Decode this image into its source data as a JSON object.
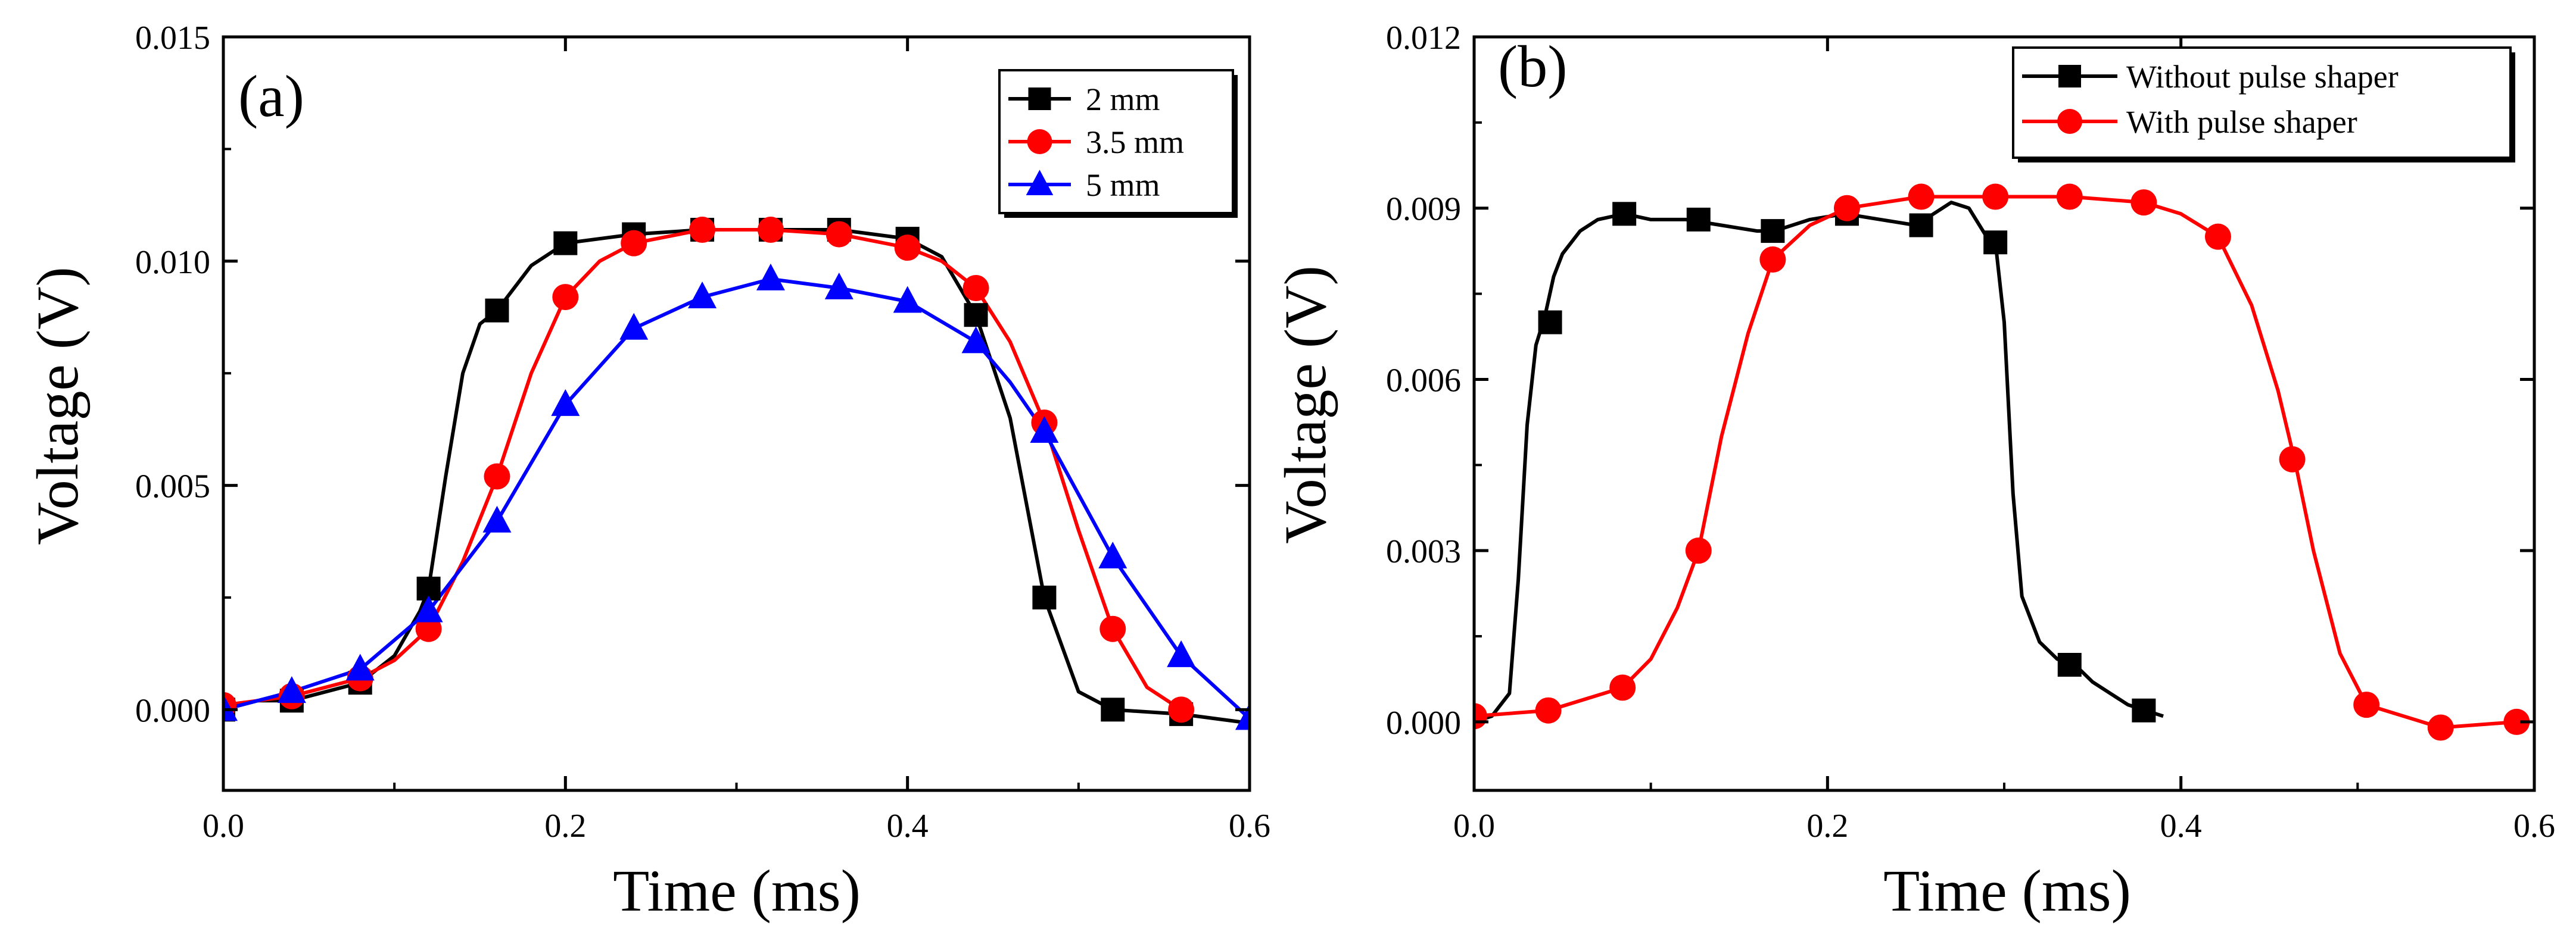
{
  "chart_data": [
    {
      "type": "line",
      "panel_label": "(a)",
      "xlabel": "Time (ms)",
      "ylabel": "Voltage (V)",
      "xlim": [
        0.0,
        0.6
      ],
      "ylim": [
        -0.0018,
        0.015
      ],
      "xticks": [
        "0.0",
        "0.2",
        "0.4",
        "0.6"
      ],
      "yticks": [
        "0.000",
        "0.005",
        "0.010",
        "0.015"
      ],
      "legend_position": "top-right",
      "series": [
        {
          "name": "2 mm",
          "color": "#000000",
          "marker": "square",
          "x": [
            0.0,
            0.02,
            0.04,
            0.06,
            0.08,
            0.1,
            0.115,
            0.12,
            0.13,
            0.14,
            0.15,
            0.16,
            0.18,
            0.2,
            0.24,
            0.28,
            0.32,
            0.36,
            0.4,
            0.42,
            0.44,
            0.46,
            0.48,
            0.5,
            0.52,
            0.56,
            0.6
          ],
          "y": [
            0.0,
            0.0002,
            0.0002,
            0.0004,
            0.0006,
            0.0012,
            0.0022,
            0.0027,
            0.0052,
            0.0075,
            0.0086,
            0.0089,
            0.0099,
            0.0104,
            0.0106,
            0.0107,
            0.0107,
            0.0107,
            0.0105,
            0.0101,
            0.0088,
            0.0065,
            0.0025,
            0.0004,
            0.0,
            -0.0001,
            -0.0003
          ],
          "marker_x": [
            0.0,
            0.04,
            0.08,
            0.12,
            0.16,
            0.2,
            0.24,
            0.28,
            0.32,
            0.36,
            0.4,
            0.44,
            0.48,
            0.52,
            0.56
          ],
          "marker_y": [
            0.0,
            0.0002,
            0.0006,
            0.0027,
            0.0089,
            0.0104,
            0.0106,
            0.0107,
            0.0107,
            0.0107,
            0.0105,
            0.0088,
            0.0025,
            0.0,
            -0.0001
          ]
        },
        {
          "name": "3.5 mm",
          "color": "#ff0000",
          "marker": "circle",
          "x": [
            0.0,
            0.04,
            0.08,
            0.1,
            0.12,
            0.14,
            0.16,
            0.18,
            0.2,
            0.22,
            0.24,
            0.28,
            0.32,
            0.36,
            0.4,
            0.42,
            0.44,
            0.46,
            0.48,
            0.5,
            0.52,
            0.54,
            0.56
          ],
          "y": [
            0.0001,
            0.0003,
            0.0007,
            0.0011,
            0.0018,
            0.0033,
            0.0052,
            0.0075,
            0.0092,
            0.01,
            0.0104,
            0.0107,
            0.0107,
            0.0106,
            0.0103,
            0.01,
            0.0094,
            0.0082,
            0.0064,
            0.004,
            0.0018,
            0.0005,
            0.0
          ],
          "marker_x": [
            0.0,
            0.04,
            0.08,
            0.12,
            0.16,
            0.2,
            0.24,
            0.28,
            0.32,
            0.36,
            0.4,
            0.44,
            0.48,
            0.52,
            0.56
          ],
          "marker_y": [
            0.0001,
            0.0003,
            0.0007,
            0.0018,
            0.0052,
            0.0092,
            0.0104,
            0.0107,
            0.0107,
            0.0106,
            0.0103,
            0.0094,
            0.0064,
            0.0018,
            0.0
          ]
        },
        {
          "name": "5 mm",
          "color": "#0000ff",
          "marker": "triangle",
          "x": [
            0.0,
            0.04,
            0.08,
            0.12,
            0.16,
            0.2,
            0.24,
            0.28,
            0.32,
            0.36,
            0.4,
            0.44,
            0.46,
            0.48,
            0.52,
            0.56,
            0.6
          ],
          "y": [
            0.0,
            0.0004,
            0.0009,
            0.0022,
            0.0042,
            0.0068,
            0.0085,
            0.0092,
            0.0096,
            0.0094,
            0.0091,
            0.0082,
            0.0073,
            0.0062,
            0.0034,
            0.0012,
            -0.0002
          ],
          "marker_x": [
            0.0,
            0.04,
            0.08,
            0.12,
            0.16,
            0.2,
            0.24,
            0.28,
            0.32,
            0.36,
            0.4,
            0.44,
            0.48,
            0.52,
            0.56,
            0.6
          ],
          "marker_y": [
            0.0,
            0.0004,
            0.0009,
            0.0022,
            0.0042,
            0.0068,
            0.0085,
            0.0092,
            0.0096,
            0.0094,
            0.0091,
            0.0082,
            0.0062,
            0.0034,
            0.0012,
            -0.0002
          ]
        }
      ]
    },
    {
      "type": "line",
      "panel_label": "(b)",
      "xlabel": "Time (ms)",
      "ylabel": "Voltage (V)",
      "xlim": [
        0.0,
        0.6
      ],
      "ylim": [
        -0.0012,
        0.012
      ],
      "xticks": [
        "0.0",
        "0.2",
        "0.4",
        "0.6"
      ],
      "yticks": [
        "0.000",
        "0.003",
        "0.006",
        "0.009",
        "0.012"
      ],
      "legend_position": "top-right",
      "series": [
        {
          "name": "Without pulse shaper",
          "color": "#000000",
          "marker": "square",
          "x": [
            0.0,
            0.01,
            0.02,
            0.025,
            0.03,
            0.035,
            0.04,
            0.045,
            0.05,
            0.06,
            0.07,
            0.085,
            0.1,
            0.12,
            0.14,
            0.16,
            0.17,
            0.19,
            0.21,
            0.23,
            0.25,
            0.27,
            0.28,
            0.29,
            0.295,
            0.3,
            0.305,
            0.31,
            0.32,
            0.33,
            0.34,
            0.35,
            0.36,
            0.37,
            0.38,
            0.39
          ],
          "y": [
            0.0,
            0.0001,
            0.0005,
            0.0025,
            0.0052,
            0.0066,
            0.0071,
            0.0078,
            0.0082,
            0.0086,
            0.0088,
            0.0089,
            0.0088,
            0.0088,
            0.0087,
            0.0086,
            0.0086,
            0.0088,
            0.0089,
            0.0088,
            0.0087,
            0.0091,
            0.009,
            0.0085,
            0.0084,
            0.007,
            0.004,
            0.0022,
            0.0014,
            0.0011,
            0.001,
            0.0007,
            0.0005,
            0.0003,
            0.0002,
            0.0001
          ],
          "marker_x": [
            0.043,
            0.085,
            0.127,
            0.169,
            0.211,
            0.253,
            0.295,
            0.337,
            0.379
          ],
          "marker_y": [
            0.007,
            0.0089,
            0.0088,
            0.0086,
            0.0089,
            0.0087,
            0.0084,
            0.001,
            0.0002
          ]
        },
        {
          "name": "With pulse shaper",
          "color": "#ff0000",
          "marker": "circle",
          "x": [
            0.0,
            0.042,
            0.084,
            0.1,
            0.115,
            0.127,
            0.14,
            0.155,
            0.169,
            0.19,
            0.211,
            0.253,
            0.295,
            0.337,
            0.379,
            0.4,
            0.421,
            0.44,
            0.455,
            0.465,
            0.475,
            0.49,
            0.505,
            0.547,
            0.59
          ],
          "y": [
            0.0001,
            0.0002,
            0.0006,
            0.0011,
            0.002,
            0.003,
            0.005,
            0.0068,
            0.0081,
            0.0087,
            0.009,
            0.0092,
            0.0092,
            0.0092,
            0.0091,
            0.0089,
            0.0085,
            0.0073,
            0.0058,
            0.0045,
            0.003,
            0.0012,
            0.0003,
            -0.0001,
            0.0
          ],
          "marker_x": [
            0.0,
            0.042,
            0.084,
            0.127,
            0.169,
            0.211,
            0.253,
            0.295,
            0.337,
            0.379,
            0.421,
            0.463,
            0.505,
            0.547,
            0.59
          ],
          "marker_y": [
            0.0001,
            0.0002,
            0.0006,
            0.003,
            0.0081,
            0.009,
            0.0092,
            0.0092,
            0.0092,
            0.0091,
            0.0085,
            0.0046,
            0.0003,
            -0.0001,
            0.0
          ]
        }
      ]
    }
  ]
}
